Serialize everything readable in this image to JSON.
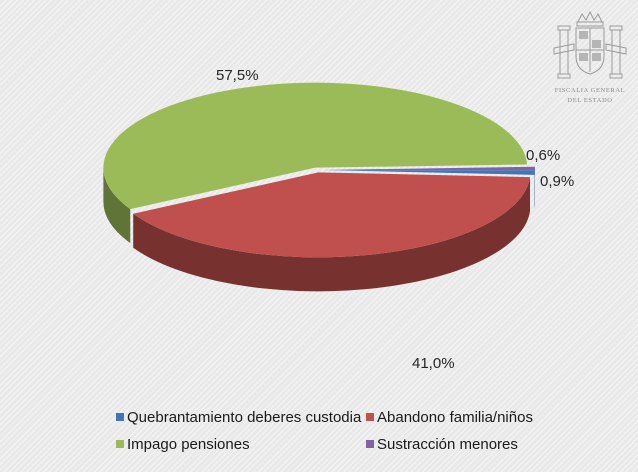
{
  "logo": {
    "line1": "FISCALIA GENERAL",
    "line2": "DEL ESTADO"
  },
  "chart_data": {
    "type": "pie",
    "title": "",
    "categories": [
      "Quebrantamiento deberes custodia",
      "Abandono familia/niños",
      "Impago pensiones",
      "Sustracción menores"
    ],
    "values": [
      0.9,
      41.0,
      57.5,
      0.6
    ],
    "labels": [
      "0,9%",
      "41,0%",
      "57,5%",
      "0,6%"
    ],
    "colors": [
      "#4573b9",
      "#c0504d",
      "#9bbb59",
      "#8064a2"
    ],
    "style": "3d-exploded",
    "legend_position": "bottom"
  }
}
